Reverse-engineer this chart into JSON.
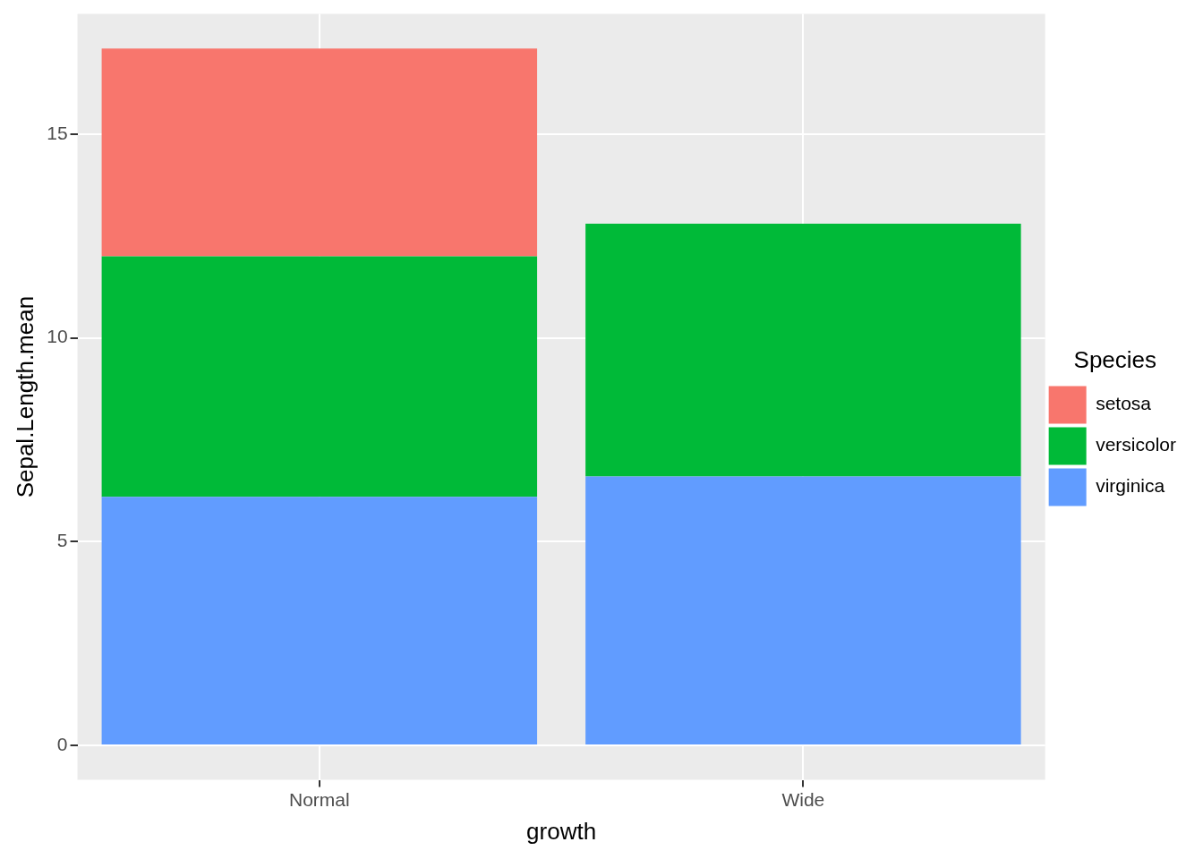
{
  "chart_data": {
    "type": "bar",
    "xlabel": "growth",
    "ylabel": "Sepal.Length.mean",
    "legend_title": "Species",
    "categories": [
      "Normal",
      "Wide"
    ],
    "stacked": true,
    "series": [
      {
        "name": "virginica",
        "color": "#619cff",
        "values": [
          6.1,
          6.6
        ]
      },
      {
        "name": "versicolor",
        "color": "#00ba38",
        "values": [
          5.9,
          6.2
        ]
      },
      {
        "name": "setosa",
        "color": "#f8766d",
        "values": [
          5.1,
          null
        ]
      }
    ],
    "ylim": [
      -0.85,
      17.95
    ],
    "yticks": [
      0,
      5,
      10,
      15
    ],
    "grid": true,
    "legend": "right"
  }
}
